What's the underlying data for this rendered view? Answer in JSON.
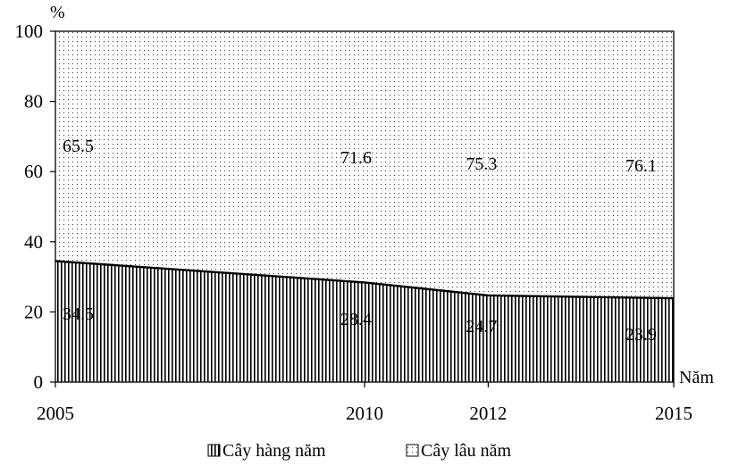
{
  "chart_data": {
    "type": "area",
    "stacked": true,
    "percent": true,
    "x": [
      2005,
      2010,
      2012,
      2015
    ],
    "x_tick_labels": [
      "2005",
      "2010",
      "2012",
      "2015"
    ],
    "series": [
      {
        "name": "Cây hàng năm",
        "values": [
          34.5,
          28.4,
          24.7,
          23.9
        ],
        "labels": [
          "34.5",
          "28.4",
          "24.7",
          "23.9"
        ],
        "pattern": "vertical-stripes"
      },
      {
        "name": "Cây lâu năm",
        "values": [
          65.5,
          71.6,
          75.3,
          76.1
        ],
        "labels": [
          "65.5",
          "71.6",
          "75.3",
          "76.1"
        ],
        "pattern": "dots"
      }
    ],
    "ylim": [
      0,
      100
    ],
    "y_ticks": [
      0,
      20,
      40,
      60,
      80,
      100
    ],
    "y_tick_labels": [
      "0",
      "20",
      "40",
      "60",
      "80",
      "100"
    ],
    "ylabel": "%",
    "xlabel": "Năm",
    "grid": false,
    "legend_position": "bottom"
  }
}
